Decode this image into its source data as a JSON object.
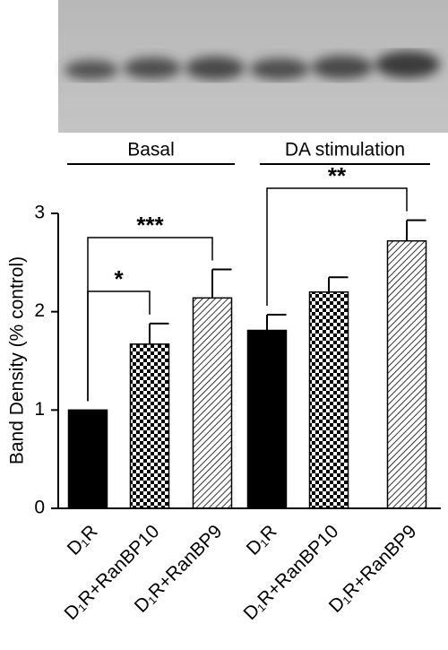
{
  "chart_data": {
    "type": "bar",
    "y_label": "Band Density (% control)",
    "groups": [
      "Basal",
      "DA stimulation"
    ],
    "categories": [
      "D₁R",
      "D₁R+RanBP10",
      "D₁R+RanBP9",
      "D₁R",
      "D₁R+RanBP10",
      "D₁R+RanBP9"
    ],
    "values": [
      1.0,
      1.67,
      2.14,
      1.81,
      2.2,
      2.72
    ],
    "errors": [
      0,
      0.21,
      0.29,
      0.16,
      0.15,
      0.21
    ],
    "patterns": [
      "solid",
      "checker",
      "hatch",
      "solid",
      "checker",
      "hatch"
    ],
    "color": "#000000",
    "annotations": [
      "*",
      "***",
      "**"
    ],
    "ylim": [
      0,
      3
    ],
    "yticks": [
      0,
      1,
      2,
      3
    ]
  }
}
